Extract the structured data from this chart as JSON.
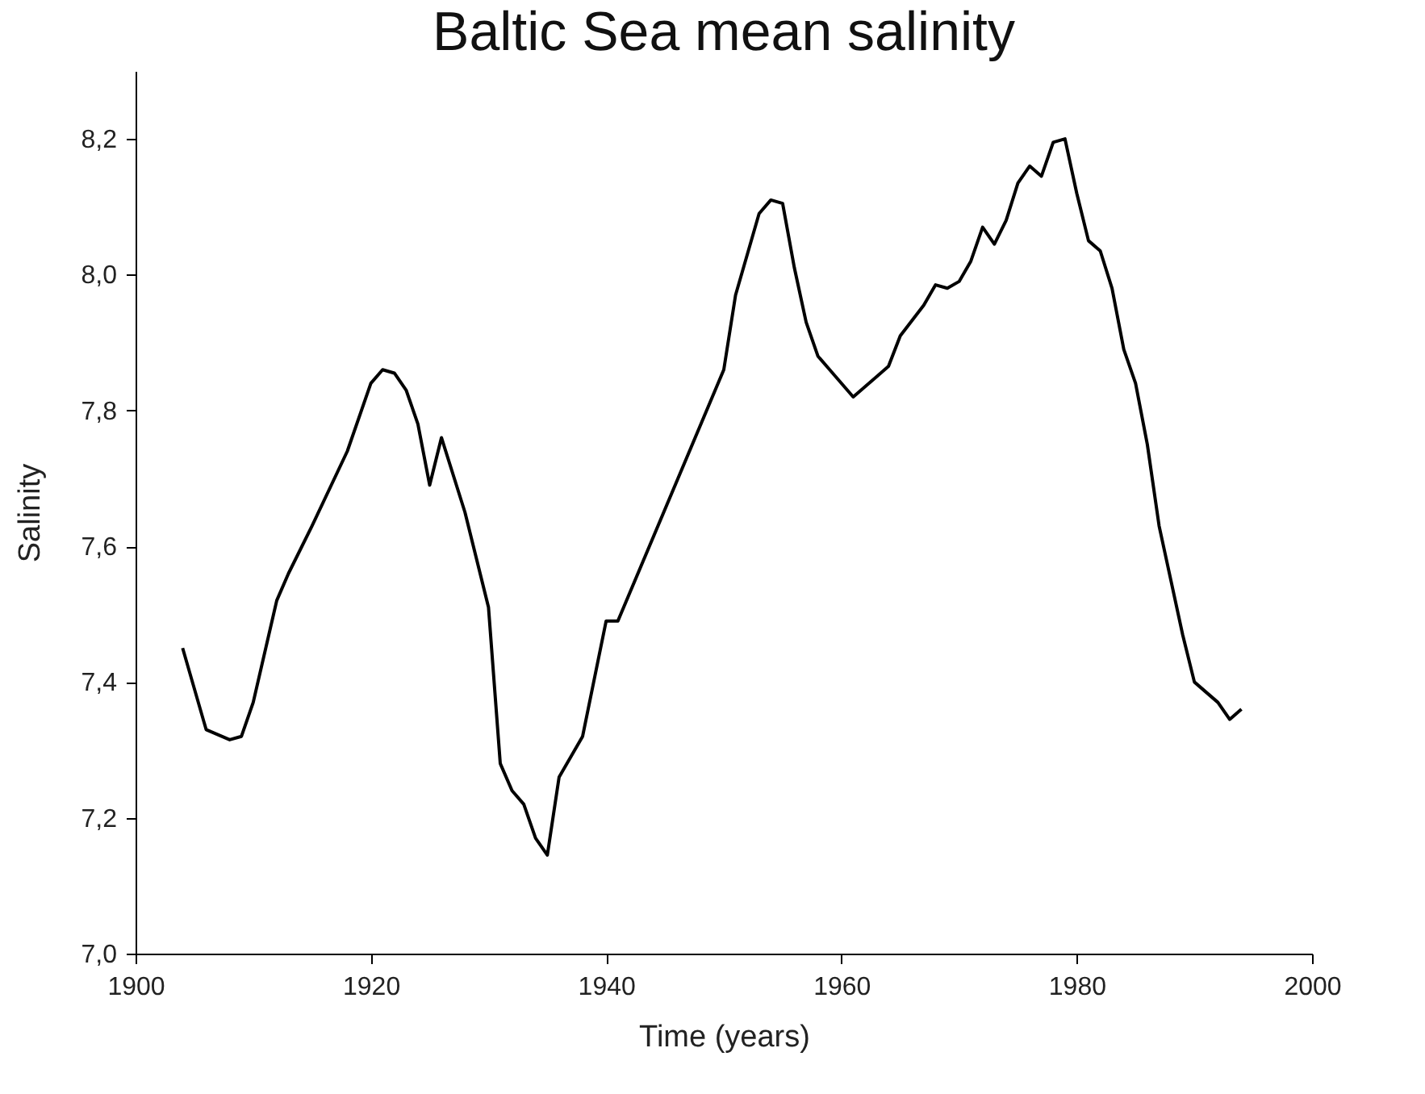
{
  "chart_data": {
    "type": "line",
    "title": "Baltic Sea mean salinity",
    "xlabel": "Time (years)",
    "ylabel": "Salinity",
    "xlim": [
      1900,
      2000
    ],
    "xticks": [
      1900,
      1920,
      1940,
      1960,
      1980,
      2000
    ],
    "ylim": [
      7.0,
      8.3
    ],
    "yticks": [
      {
        "value": 7.0,
        "label": "7,0"
      },
      {
        "value": 7.2,
        "label": "7,2"
      },
      {
        "value": 7.4,
        "label": "7,4"
      },
      {
        "value": 7.6,
        "label": "7,6"
      },
      {
        "value": 7.8,
        "label": "7,8"
      },
      {
        "value": 8.0,
        "label": "8,0"
      },
      {
        "value": 8.2,
        "label": "8,2"
      }
    ],
    "grid": false,
    "x": [
      1904,
      1906,
      1908,
      1909,
      1910,
      1912,
      1913,
      1915,
      1918,
      1920,
      1921,
      1922,
      1923,
      1924,
      1925,
      1926,
      1928,
      1930,
      1931,
      1932,
      1933,
      1934,
      1935,
      1936,
      1938,
      1940,
      1941,
      1950,
      1951,
      1953,
      1954,
      1955,
      1956,
      1957,
      1958,
      1959,
      1961,
      1963,
      1964,
      1965,
      1967,
      1968,
      1969,
      1970,
      1971,
      1972,
      1973,
      1974,
      1975,
      1976,
      1977,
      1978,
      1979,
      1980,
      1981,
      1982,
      1983,
      1984,
      1985,
      1986,
      1987,
      1988,
      1989,
      1990,
      1992,
      1993,
      1994
    ],
    "series": [
      {
        "color": "#000000",
        "values": [
          7.45,
          7.33,
          7.315,
          7.32,
          7.37,
          7.52,
          7.56,
          7.63,
          7.74,
          7.84,
          7.86,
          7.855,
          7.83,
          7.78,
          7.69,
          7.76,
          7.65,
          7.51,
          7.28,
          7.24,
          7.22,
          7.17,
          7.145,
          7.26,
          7.32,
          7.49,
          7.49,
          7.86,
          7.97,
          8.09,
          8.11,
          8.105,
          8.01,
          7.93,
          7.88,
          7.86,
          7.82,
          7.85,
          7.865,
          7.91,
          7.955,
          7.985,
          7.98,
          7.99,
          8.02,
          8.07,
          8.045,
          8.08,
          8.135,
          8.16,
          8.145,
          8.195,
          8.2,
          8.12,
          8.05,
          8.035,
          7.98,
          7.89,
          7.84,
          7.75,
          7.63,
          7.55,
          7.47,
          7.4,
          7.37,
          7.345,
          7.36
        ]
      }
    ]
  }
}
